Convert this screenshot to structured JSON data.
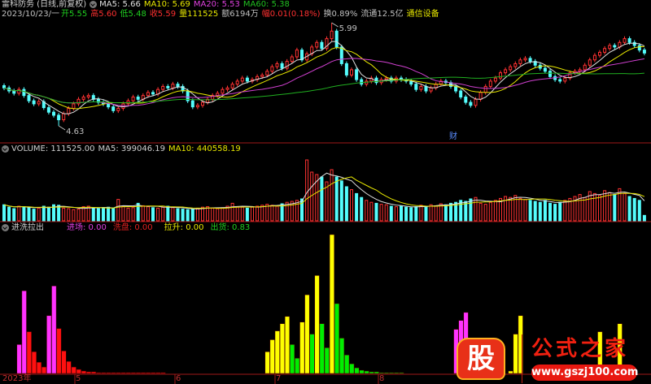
{
  "header": {
    "stock": "雷科防务 (日线,前复权)",
    "ma5": "MA5: 5.66",
    "ma10": "MA10: 5.69",
    "ma20": "MA20: 5.53",
    "ma60": "MA60: 5.38",
    "date": "2023/10/23/一",
    "open": "开5.55",
    "high": "高5.60",
    "low": "低5.48",
    "close": "收5.59",
    "vol": "量111525",
    "amount": "额6194万",
    "change": "幅0.01(0.18%)",
    "turnover": "换0.89%",
    "float": "流通12.5亿",
    "industry": "通信设备"
  },
  "volume_header": {
    "vol": "VOLUME: 111525.00",
    "ma5": "MA5: 399046.19",
    "ma10": "MA10: 440558.19"
  },
  "indicator_header": {
    "name": "进洗拉出",
    "entry": "进场: 0.00",
    "wash": "洗盘: 0.00",
    "pull": "拉升: 0.00",
    "ship": "出货: 0.83"
  },
  "price_labels": {
    "high": "5.99",
    "low": "4.63"
  },
  "finance_marker": "财",
  "x_axis": [
    "2023年",
    "5",
    "6",
    "7",
    "8"
  ],
  "logo": {
    "mark": "股",
    "name": "公式之家",
    "url": "www.gszj100.com"
  },
  "colors": {
    "up": "#ff3232",
    "down": "#54fcfc",
    "ma5": "#e0e0e0",
    "ma10": "#e8e800",
    "ma20": "#d040d0",
    "ma60": "#20b020",
    "entry": "#ff33ff",
    "wash": "#ff1010",
    "pull": "#ffff00",
    "ship": "#00ee00",
    "axis": "#a01818"
  },
  "chart_data": {
    "type": "candlestick",
    "price_range": [
      4.63,
      5.99
    ],
    "extremes": {
      "high": {
        "index": 66,
        "value": 5.99
      },
      "low": {
        "index": 11,
        "value": 4.63
      }
    },
    "closes": [
      5.13,
      5.09,
      5.06,
      5.11,
      5.03,
      4.96,
      4.92,
      4.95,
      4.87,
      4.81,
      4.77,
      4.71,
      4.79,
      4.86,
      4.92,
      4.98,
      5.01,
      5.03,
      4.98,
      4.94,
      4.92,
      4.88,
      4.83,
      4.86,
      4.92,
      4.96,
      5.01,
      4.98,
      5.03,
      5.07,
      5.05,
      5.11,
      5.15,
      5.13,
      5.18,
      5.15,
      5.09,
      4.96,
      4.88,
      4.9,
      4.94,
      4.98,
      5.03,
      5.06,
      5.11,
      5.13,
      5.18,
      5.22,
      5.26,
      5.22,
      5.24,
      5.28,
      5.3,
      5.35,
      5.41,
      5.45,
      5.39,
      5.48,
      5.54,
      5.63,
      5.5,
      5.58,
      5.67,
      5.73,
      5.65,
      5.78,
      5.88,
      5.67,
      5.45,
      5.3,
      5.37,
      5.24,
      5.18,
      5.22,
      5.26,
      5.2,
      5.24,
      5.26,
      5.22,
      5.26,
      5.24,
      5.22,
      5.18,
      5.11,
      5.15,
      5.09,
      5.13,
      5.18,
      5.22,
      5.2,
      5.15,
      5.09,
      5.01,
      4.94,
      4.9,
      4.98,
      5.07,
      5.15,
      5.22,
      5.26,
      5.33,
      5.37,
      5.41,
      5.45,
      5.5,
      5.52,
      5.48,
      5.43,
      5.39,
      5.35,
      5.28,
      5.24,
      5.22,
      5.26,
      5.33,
      5.35,
      5.37,
      5.43,
      5.5,
      5.56,
      5.6,
      5.65,
      5.69,
      5.67,
      5.73,
      5.78,
      5.73,
      5.69,
      5.63,
      5.59
    ],
    "volumes": [
      330000,
      280000,
      250000,
      300000,
      290000,
      270000,
      240000,
      260000,
      300000,
      280000,
      330000,
      320000,
      260000,
      250000,
      230000,
      240000,
      290000,
      300000,
      260000,
      250000,
      270000,
      280000,
      260000,
      440000,
      300000,
      260000,
      270000,
      360000,
      310000,
      290000,
      270000,
      260000,
      280000,
      300000,
      270000,
      250000,
      240000,
      230000,
      240000,
      260000,
      280000,
      290000,
      260000,
      250000,
      270000,
      300000,
      360000,
      290000,
      280000,
      260000,
      280000,
      300000,
      320000,
      340000,
      320000,
      300000,
      350000,
      380000,
      400000,
      420000,
      450000,
      1250000,
      1000000,
      950000,
      900000,
      800000,
      1050000,
      900000,
      820000,
      700000,
      640000,
      560000,
      480000,
      420000,
      380000,
      360000,
      340000,
      330000,
      300000,
      290000,
      300000,
      280000,
      270000,
      290000,
      320000,
      300000,
      330000,
      310000,
      350000,
      330000,
      360000,
      380000,
      420000,
      400000,
      450000,
      480000,
      360000,
      340000,
      380000,
      420000,
      460000,
      500000,
      480000,
      520000,
      460000,
      440000,
      420000,
      400000,
      380000,
      420000,
      360000,
      340000,
      380000,
      420000,
      460000,
      500000,
      540000,
      480000,
      600000,
      560000,
      520000,
      620000,
      580000,
      540000,
      660000,
      560000,
      500000,
      460000,
      420000,
      111525
    ],
    "volume_max": 1400000,
    "indicator_max": 175,
    "indicator": [
      [
        3,
        36,
        "entry"
      ],
      [
        4,
        103,
        "entry"
      ],
      [
        5,
        52,
        "wash"
      ],
      [
        6,
        27,
        "wash"
      ],
      [
        7,
        14,
        "wash"
      ],
      [
        8,
        8,
        "wash"
      ],
      [
        9,
        72,
        "entry"
      ],
      [
        10,
        109,
        "entry"
      ],
      [
        11,
        56,
        "wash"
      ],
      [
        12,
        28,
        "wash"
      ],
      [
        13,
        15,
        "wash"
      ],
      [
        14,
        8,
        "wash"
      ],
      [
        15,
        5,
        "wash"
      ],
      [
        16,
        3,
        "wash"
      ],
      [
        17,
        2,
        "wash"
      ],
      [
        18,
        2,
        "wash"
      ],
      [
        19,
        1,
        "wash"
      ],
      [
        20,
        1,
        "wash"
      ],
      [
        21,
        1,
        "wash"
      ],
      [
        22,
        1,
        "wash"
      ],
      [
        23,
        1,
        "wash"
      ],
      [
        24,
        1,
        "wash"
      ],
      [
        25,
        1,
        "wash"
      ],
      [
        26,
        1,
        "wash"
      ],
      [
        27,
        1,
        "wash"
      ],
      [
        28,
        1,
        "wash"
      ],
      [
        29,
        1,
        "wash"
      ],
      [
        30,
        1,
        "wash"
      ],
      [
        31,
        1,
        "wash"
      ],
      [
        32,
        1,
        "wash"
      ],
      [
        53,
        27,
        "pull"
      ],
      [
        54,
        42,
        "pull"
      ],
      [
        55,
        53,
        "pull"
      ],
      [
        56,
        62,
        "pull"
      ],
      [
        57,
        71,
        "pull"
      ],
      [
        58,
        36,
        "ship"
      ],
      [
        59,
        19,
        "ship"
      ],
      [
        60,
        64,
        "pull"
      ],
      [
        61,
        98,
        "pull"
      ],
      [
        62,
        49,
        "ship"
      ],
      [
        63,
        122,
        "pull"
      ],
      [
        64,
        62,
        "ship"
      ],
      [
        65,
        32,
        "ship"
      ],
      [
        66,
        173,
        "pull"
      ],
      [
        67,
        87,
        "ship"
      ],
      [
        68,
        44,
        "ship"
      ],
      [
        69,
        23,
        "ship"
      ],
      [
        70,
        12,
        "ship"
      ],
      [
        71,
        7,
        "ship"
      ],
      [
        72,
        4,
        "ship"
      ],
      [
        73,
        3,
        "ship"
      ],
      [
        74,
        2,
        "ship"
      ],
      [
        75,
        2,
        "ship"
      ],
      [
        76,
        1,
        "ship"
      ],
      [
        77,
        1,
        "ship"
      ],
      [
        78,
        1,
        "ship"
      ],
      [
        79,
        1,
        "ship"
      ],
      [
        80,
        1,
        "ship"
      ],
      [
        91,
        55,
        "entry"
      ],
      [
        92,
        66,
        "entry"
      ],
      [
        93,
        76,
        "entry"
      ],
      [
        102,
        3,
        "pull"
      ],
      [
        103,
        49,
        "pull"
      ],
      [
        104,
        72,
        "pull"
      ],
      [
        120,
        52,
        "pull"
      ],
      [
        124,
        62,
        "pull"
      ]
    ]
  }
}
